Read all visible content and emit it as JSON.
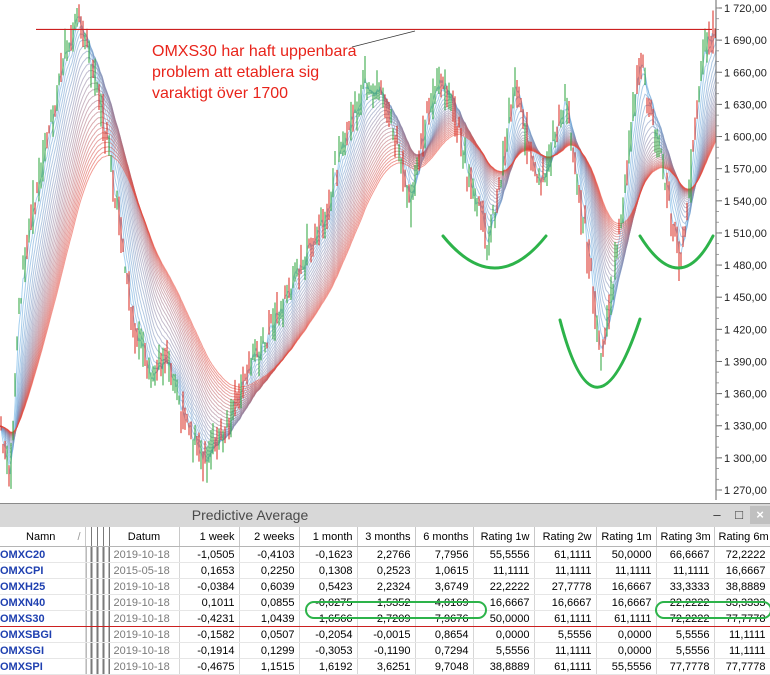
{
  "chart": {
    "y_axis_ticks": [
      "1 720,00",
      "1 690,00",
      "1 660,00",
      "1 630,00",
      "1 600,00",
      "1 570,00",
      "1 540,00",
      "1 510,00",
      "1 480,00",
      "1 450,00",
      "1 420,00",
      "1 390,00",
      "1 360,00",
      "1 330,00",
      "1 300,00",
      "1 270,00"
    ],
    "y_min": 1255,
    "y_max": 1722,
    "resistance_level": 1700,
    "annotation": [
      "OMXS30 har haft uppenbara",
      "problem att etablera sig",
      "varaktigt över 1700"
    ],
    "colors": {
      "up_candle": "#2aa338",
      "down_candle": "#d8261b",
      "fast_ribbon": "#5ba9e4",
      "slow_ribbon": "#e8493a",
      "highlight": "#2db34a",
      "resistance_line": "#cc2020"
    }
  },
  "panel": {
    "title": "Predictive Average",
    "minimize": "–",
    "maximize": "□",
    "close": "×"
  },
  "table": {
    "headers": [
      "Namn",
      "Datum",
      "1 week",
      "2 weeks",
      "1 month",
      "3 months",
      "6 months",
      "Rating 1w",
      "Rating 2w",
      "Rating 1m",
      "Rating 3m",
      "Rating 6m"
    ],
    "rows": [
      [
        "OMXC20",
        "2019-10-18",
        "-1,0505",
        "-0,4103",
        "-0,1623",
        "2,2766",
        "7,7956",
        "55,5556",
        "61,1111",
        "50,0000",
        "66,6667",
        "72,2222"
      ],
      [
        "OMXCPI",
        "2015-05-18",
        "0,1653",
        "0,2250",
        "0,1308",
        "0,2523",
        "1,0615",
        "11,1111",
        "11,1111",
        "11,1111",
        "11,1111",
        "16,6667"
      ],
      [
        "OMXH25",
        "2019-10-18",
        "-0,0384",
        "0,6039",
        "0,5423",
        "2,2324",
        "3,6749",
        "22,2222",
        "27,7778",
        "16,6667",
        "33,3333",
        "38,8889"
      ],
      [
        "OMXN40",
        "2019-10-18",
        "0,1011",
        "0,0855",
        "-0,0275",
        "1,5352",
        "4,0169",
        "16,6667",
        "16,6667",
        "16,6667",
        "22,2222",
        "33,3333"
      ],
      [
        "OMXS30",
        "2019-10-18",
        "-0,4231",
        "1,0439",
        "1,6566",
        "2,7209",
        "7,9676",
        "50,0000",
        "61,1111",
        "61,1111",
        "72,2222",
        "77,7778"
      ],
      [
        "OMXSBGI",
        "2019-10-18",
        "-0,1582",
        "0,0507",
        "-0,2054",
        "-0,0015",
        "0,8654",
        "0,0000",
        "5,5556",
        "0,0000",
        "5,5556",
        "11,1111"
      ],
      [
        "OMXSGI",
        "2019-10-18",
        "-0,1914",
        "0,1299",
        "-0,3053",
        "-0,1190",
        "0,7294",
        "5,5556",
        "11,1111",
        "0,0000",
        "5,5556",
        "11,1111"
      ],
      [
        "OMXSPI",
        "2019-10-18",
        "-0,4675",
        "1,1515",
        "1,6192",
        "3,6251",
        "9,7048",
        "38,8889",
        "61,1111",
        "55,5556",
        "77,7778",
        "77,7778"
      ]
    ],
    "highlight_row": "OMXS30",
    "sort_indicator": "/"
  }
}
